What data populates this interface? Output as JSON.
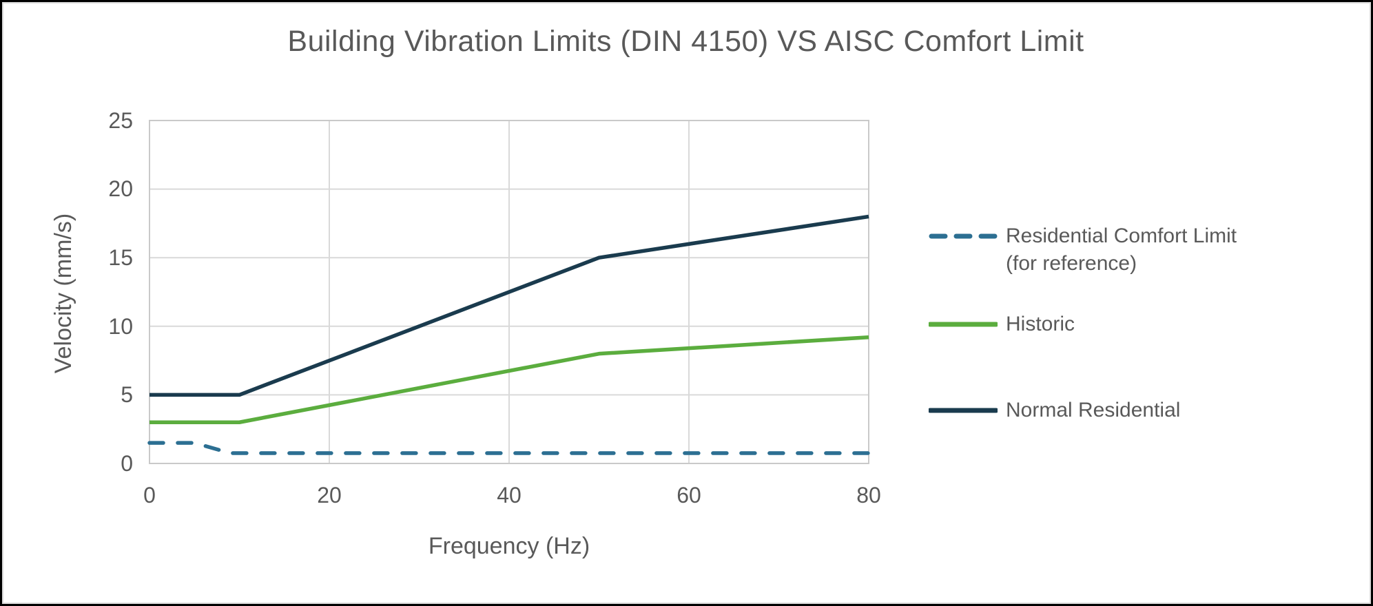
{
  "window": {
    "background": "#ffffff",
    "frame_border_color": "#000000",
    "chart_border_color": "#D9D9D9"
  },
  "colors": {
    "text_gray": "#595959",
    "gridline": "#D9D9D9",
    "plot_border": "#C9C9C9",
    "comfort_blue": "#2C6F92",
    "historic_green": "#5BAD3E",
    "residential_navy": "#1A3B4E"
  },
  "legend": {
    "items": [
      {
        "label": "Residential Comfort Limit\n(for reference)",
        "swatch": "dashed-line",
        "color": "#2C6F92"
      },
      {
        "label": "Historic",
        "swatch": "solid-line",
        "color": "#5BAD3E"
      },
      {
        "label": "Normal Residential",
        "swatch": "solid-line",
        "color": "#1A3B4E"
      }
    ]
  },
  "chart_data": {
    "type": "line",
    "title": "Building Vibration Limits (DIN 4150) VS AISC Comfort Limit",
    "xlabel": "Frequency (Hz)",
    "ylabel": "Velocity (mm/s)",
    "xlim": [
      0,
      80
    ],
    "ylim": [
      0,
      25
    ],
    "x_ticks": [
      0,
      20,
      40,
      60,
      80
    ],
    "y_ticks": [
      0,
      5,
      10,
      15,
      20,
      25
    ],
    "x_tick_labels": [
      "0",
      "20",
      "40",
      "60",
      "80"
    ],
    "y_tick_labels": [
      "0",
      "5",
      "10",
      "15",
      "20",
      "25"
    ],
    "grid": true,
    "legend_position": "right",
    "series": [
      {
        "name": "Residential Comfort Limit (for reference)",
        "color": "#2C6F92",
        "style": "dashed",
        "points": [
          [
            0,
            1.5
          ],
          [
            5,
            1.5
          ],
          [
            9,
            0.75
          ],
          [
            80,
            0.75
          ]
        ]
      },
      {
        "name": "Historic",
        "color": "#5BAD3E",
        "style": "solid",
        "points": [
          [
            0,
            3
          ],
          [
            10,
            3
          ],
          [
            50,
            8
          ],
          [
            80,
            9.2
          ]
        ]
      },
      {
        "name": "Normal Residential",
        "color": "#1A3B4E",
        "style": "solid",
        "points": [
          [
            0,
            5
          ],
          [
            10,
            5
          ],
          [
            50,
            15
          ],
          [
            80,
            18
          ]
        ]
      }
    ]
  }
}
